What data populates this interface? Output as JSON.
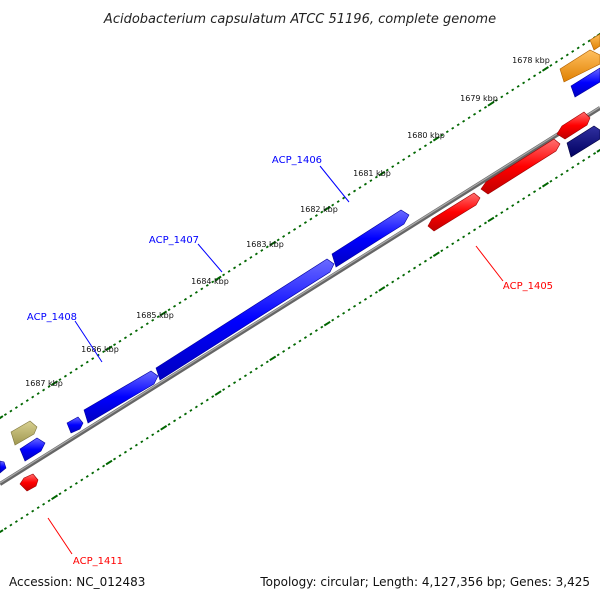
{
  "title": "Acidobacterium capsulatum ATCC 51196, complete genome",
  "footer": {
    "accession": "Accession: NC_012483",
    "topology": "Topology: circular; Length: 4,127,356 bp; Genes: 3,425"
  },
  "colors": {
    "forward": "#0000ff",
    "reverse": "#ff0000",
    "dark_blue": "#000080",
    "orange": "#ff9900",
    "olive": "#b8b070",
    "backbone": "#808080",
    "ticks": "#006600"
  },
  "ticks": [
    {
      "label": "1678 kbp"
    },
    {
      "label": "1679 kbp"
    },
    {
      "label": "1680 kbp"
    },
    {
      "label": "1681 kbp"
    },
    {
      "label": "1682 kbp"
    },
    {
      "label": "1683 kbp"
    },
    {
      "label": "1684 kbp"
    },
    {
      "label": "1685 kbp"
    },
    {
      "label": "1686 kbp"
    },
    {
      "label": "1687 kbp"
    }
  ],
  "genes": [
    {
      "name": "ACP_1405",
      "strand": "reverse",
      "color": "red"
    },
    {
      "name": "ACP_1406",
      "strand": "forward",
      "color": "blue"
    },
    {
      "name": "ACP_1407",
      "strand": "forward",
      "color": "blue"
    },
    {
      "name": "ACP_1408",
      "strand": "forward",
      "color": "blue"
    },
    {
      "name": "ACP_1411",
      "strand": "reverse",
      "color": "red"
    }
  ]
}
